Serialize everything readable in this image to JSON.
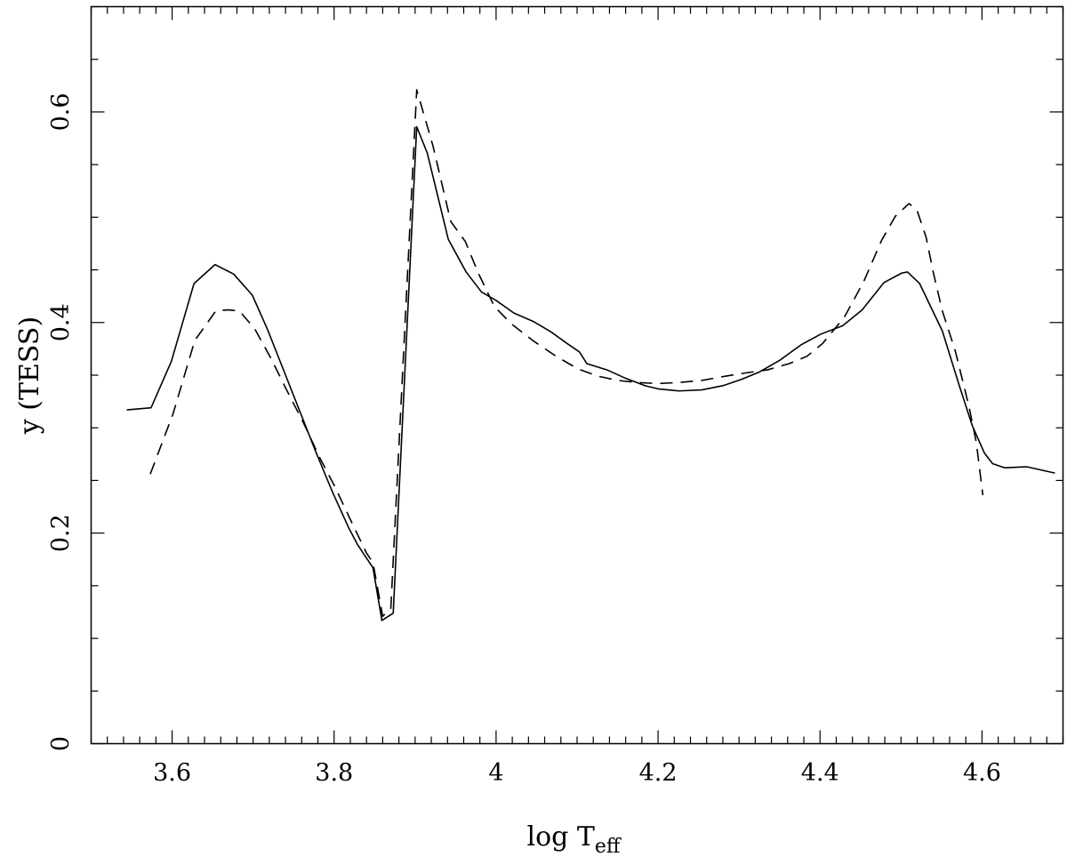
{
  "chart_data": {
    "type": "line",
    "xlabel": {
      "main": "log T",
      "sub": "eff"
    },
    "ylabel": "y (TESS)",
    "xlim": [
      3.5,
      4.7
    ],
    "ylim": [
      0,
      0.7
    ],
    "x_ticks": [
      {
        "value": 3.6,
        "label": "3.6"
      },
      {
        "value": 3.8,
        "label": "3.8"
      },
      {
        "value": 4.0,
        "label": "4"
      },
      {
        "value": 4.2,
        "label": "4.2"
      },
      {
        "value": 4.4,
        "label": "4.4"
      },
      {
        "value": 4.6,
        "label": "4.6"
      }
    ],
    "y_ticks": [
      {
        "value": 0,
        "label": "0"
      },
      {
        "value": 0.2,
        "label": "0.2"
      },
      {
        "value": 0.4,
        "label": "0.4"
      },
      {
        "value": 0.6,
        "label": "0.6"
      }
    ],
    "grid": false,
    "series": [
      {
        "style": "solid",
        "color": "#000000",
        "points": [
          [
            3.544,
            0.317
          ],
          [
            3.574,
            0.319
          ],
          [
            3.599,
            0.363
          ],
          [
            3.627,
            0.437
          ],
          [
            3.653,
            0.455
          ],
          [
            3.676,
            0.446
          ],
          [
            3.699,
            0.426
          ],
          [
            3.718,
            0.393
          ],
          [
            3.738,
            0.354
          ],
          [
            3.758,
            0.315
          ],
          [
            3.778,
            0.276
          ],
          [
            3.798,
            0.239
          ],
          [
            3.818,
            0.205
          ],
          [
            3.829,
            0.189
          ],
          [
            3.848,
            0.167
          ],
          [
            3.859,
            0.117
          ],
          [
            3.873,
            0.124
          ],
          [
            3.902,
            0.586
          ],
          [
            3.915,
            0.561
          ],
          [
            3.941,
            0.479
          ],
          [
            3.963,
            0.448
          ],
          [
            3.982,
            0.429
          ],
          [
            4.0,
            0.421
          ],
          [
            4.022,
            0.409
          ],
          [
            4.046,
            0.401
          ],
          [
            4.068,
            0.391
          ],
          [
            4.086,
            0.381
          ],
          [
            4.103,
            0.372
          ],
          [
            4.112,
            0.361
          ],
          [
            4.137,
            0.355
          ],
          [
            4.16,
            0.347
          ],
          [
            4.184,
            0.34
          ],
          [
            4.2,
            0.337
          ],
          [
            4.226,
            0.335
          ],
          [
            4.254,
            0.336
          ],
          [
            4.28,
            0.34
          ],
          [
            4.303,
            0.346
          ],
          [
            4.325,
            0.353
          ],
          [
            4.35,
            0.364
          ],
          [
            4.377,
            0.379
          ],
          [
            4.401,
            0.389
          ],
          [
            4.428,
            0.397
          ],
          [
            4.452,
            0.412
          ],
          [
            4.479,
            0.438
          ],
          [
            4.501,
            0.447
          ],
          [
            4.508,
            0.448
          ],
          [
            4.523,
            0.437
          ],
          [
            4.551,
            0.392
          ],
          [
            4.572,
            0.34
          ],
          [
            4.588,
            0.302
          ],
          [
            4.603,
            0.276
          ],
          [
            4.613,
            0.266
          ],
          [
            4.628,
            0.262
          ],
          [
            4.655,
            0.263
          ],
          [
            4.69,
            0.257
          ]
        ]
      },
      {
        "style": "dashed",
        "color": "#000000",
        "points": [
          [
            3.573,
            0.256
          ],
          [
            3.601,
            0.313
          ],
          [
            3.628,
            0.383
          ],
          [
            3.654,
            0.411
          ],
          [
            3.669,
            0.412
          ],
          [
            3.683,
            0.411
          ],
          [
            3.702,
            0.394
          ],
          [
            3.722,
            0.366
          ],
          [
            3.742,
            0.335
          ],
          [
            3.762,
            0.305
          ],
          [
            3.782,
            0.272
          ],
          [
            3.801,
            0.244
          ],
          [
            3.82,
            0.213
          ],
          [
            3.84,
            0.181
          ],
          [
            3.848,
            0.172
          ],
          [
            3.86,
            0.121
          ],
          [
            3.87,
            0.128
          ],
          [
            3.902,
            0.621
          ],
          [
            3.922,
            0.568
          ],
          [
            3.944,
            0.496
          ],
          [
            3.962,
            0.477
          ],
          [
            3.978,
            0.447
          ],
          [
            3.998,
            0.415
          ],
          [
            4.02,
            0.398
          ],
          [
            4.047,
            0.382
          ],
          [
            4.074,
            0.368
          ],
          [
            4.101,
            0.356
          ],
          [
            4.126,
            0.349
          ],
          [
            4.15,
            0.345
          ],
          [
            4.175,
            0.343
          ],
          [
            4.2,
            0.342
          ],
          [
            4.225,
            0.343
          ],
          [
            4.254,
            0.345
          ],
          [
            4.283,
            0.349
          ],
          [
            4.307,
            0.352
          ],
          [
            4.335,
            0.355
          ],
          [
            4.362,
            0.361
          ],
          [
            4.384,
            0.368
          ],
          [
            4.403,
            0.38
          ],
          [
            4.43,
            0.405
          ],
          [
            4.454,
            0.439
          ],
          [
            4.476,
            0.478
          ],
          [
            4.493,
            0.501
          ],
          [
            4.51,
            0.513
          ],
          [
            4.52,
            0.506
          ],
          [
            4.531,
            0.481
          ],
          [
            4.54,
            0.447
          ],
          [
            4.551,
            0.411
          ],
          [
            4.567,
            0.373
          ],
          [
            4.584,
            0.32
          ],
          [
            4.593,
            0.286
          ],
          [
            4.601,
            0.236
          ]
        ]
      }
    ]
  }
}
